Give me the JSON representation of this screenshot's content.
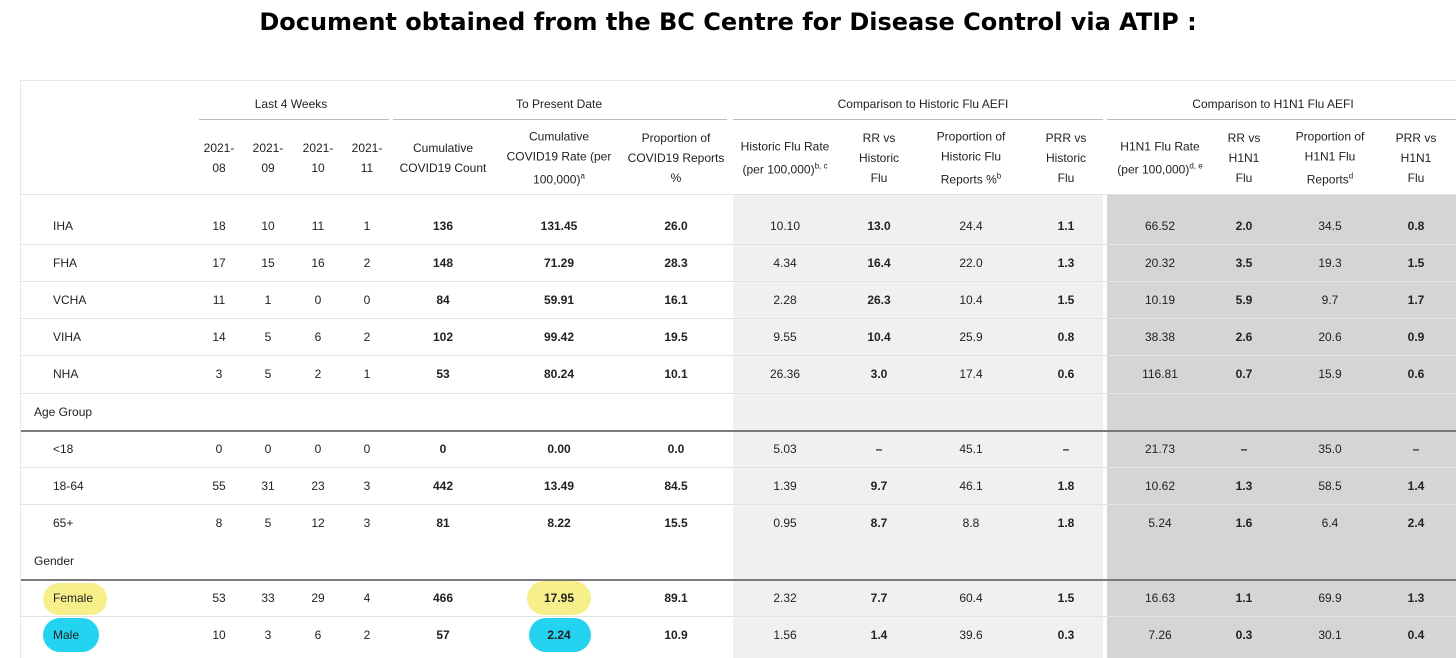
{
  "title": "Document obtained from the BC Centre for Disease Control via ATIP :",
  "groups": {
    "last4": "Last 4 Weeks",
    "present": "To Present Date",
    "historic": "Comparison to Historic Flu AEFI",
    "h1n1": "Comparison to H1N1 Flu AEFI"
  },
  "columns": {
    "c0": [
      "2021-",
      "08"
    ],
    "c1": [
      "2021-",
      "09"
    ],
    "c2": [
      "2021-",
      "10"
    ],
    "c3": [
      "2021-",
      "11"
    ],
    "c4": [
      "Cumulative",
      "COVID19 Count"
    ],
    "c5": [
      "Cumulative",
      "COVID19 Rate (per",
      "100,000)",
      "a"
    ],
    "c6": [
      "Proportion of",
      "COVID19 Reports",
      "%"
    ],
    "c7": [
      "Historic Flu Rate",
      "(per 100,000)",
      "b, c"
    ],
    "c8": [
      "RR vs",
      "Historic",
      "Flu"
    ],
    "c9": [
      "Proportion of",
      "Historic Flu",
      "Reports %",
      "b"
    ],
    "c10": [
      "PRR vs",
      "Historic",
      "Flu"
    ],
    "c11": [
      "H1N1 Flu Rate",
      "(per 100,000)",
      "d, e"
    ],
    "c12": [
      "RR vs",
      "H1N1",
      "Flu"
    ],
    "c13": [
      "Proportion of",
      "H1N1 Flu",
      "Reports",
      "d"
    ],
    "c14": [
      "PRR vs",
      "H1N1",
      "Flu"
    ]
  },
  "sections": {
    "age": "Age Group",
    "gender": "Gender"
  },
  "rows": [
    {
      "label": "IHA",
      "values": [
        "18",
        "10",
        "11",
        "1",
        "136",
        "131.45",
        "26.0",
        "10.10",
        "13.0",
        "24.4",
        "1.1",
        "66.52",
        "2.0",
        "34.5",
        "0.8"
      ]
    },
    {
      "label": "FHA",
      "values": [
        "17",
        "15",
        "16",
        "2",
        "148",
        "71.29",
        "28.3",
        "4.34",
        "16.4",
        "22.0",
        "1.3",
        "20.32",
        "3.5",
        "19.3",
        "1.5"
      ]
    },
    {
      "label": "VCHA",
      "values": [
        "11",
        "1",
        "0",
        "0",
        "84",
        "59.91",
        "16.1",
        "2.28",
        "26.3",
        "10.4",
        "1.5",
        "10.19",
        "5.9",
        "9.7",
        "1.7"
      ]
    },
    {
      "label": "VIHA",
      "values": [
        "14",
        "5",
        "6",
        "2",
        "102",
        "99.42",
        "19.5",
        "9.55",
        "10.4",
        "25.9",
        "0.8",
        "38.38",
        "2.6",
        "20.6",
        "0.9"
      ]
    },
    {
      "label": "NHA",
      "values": [
        "3",
        "5",
        "2",
        "1",
        "53",
        "80.24",
        "10.1",
        "26.36",
        "3.0",
        "17.4",
        "0.6",
        "116.81",
        "0.7",
        "15.9",
        "0.6"
      ]
    },
    {
      "label": "<18",
      "values": [
        "0",
        "0",
        "0",
        "0",
        "0",
        "0.00",
        "0.0",
        "5.03",
        "–",
        "45.1",
        "–",
        "21.73",
        "–",
        "35.0",
        "–"
      ]
    },
    {
      "label": "18-64",
      "values": [
        "55",
        "31",
        "23",
        "3",
        "442",
        "13.49",
        "84.5",
        "1.39",
        "9.7",
        "46.1",
        "1.8",
        "10.62",
        "1.3",
        "58.5",
        "1.4"
      ]
    },
    {
      "label": "65+",
      "values": [
        "8",
        "5",
        "12",
        "3",
        "81",
        "8.22",
        "15.5",
        "0.95",
        "8.7",
        "8.8",
        "1.8",
        "5.24",
        "1.6",
        "6.4",
        "2.4"
      ]
    },
    {
      "label": "Female",
      "values": [
        "53",
        "33",
        "29",
        "4",
        "466",
        "17.95",
        "89.1",
        "2.32",
        "7.7",
        "60.4",
        "1.5",
        "16.63",
        "1.1",
        "69.9",
        "1.3"
      ]
    },
    {
      "label": "Male",
      "values": [
        "10",
        "3",
        "6",
        "2",
        "57",
        "2.24",
        "10.9",
        "1.56",
        "1.4",
        "39.6",
        "0.3",
        "7.26",
        "0.3",
        "30.1",
        "0.4"
      ]
    }
  ],
  "colors": {
    "highlight_female": "#f7ef8a",
    "highlight_male": "#23d3ef",
    "historic_band": "#f0f0f0",
    "h1n1_band": "#d5d5d5"
  }
}
